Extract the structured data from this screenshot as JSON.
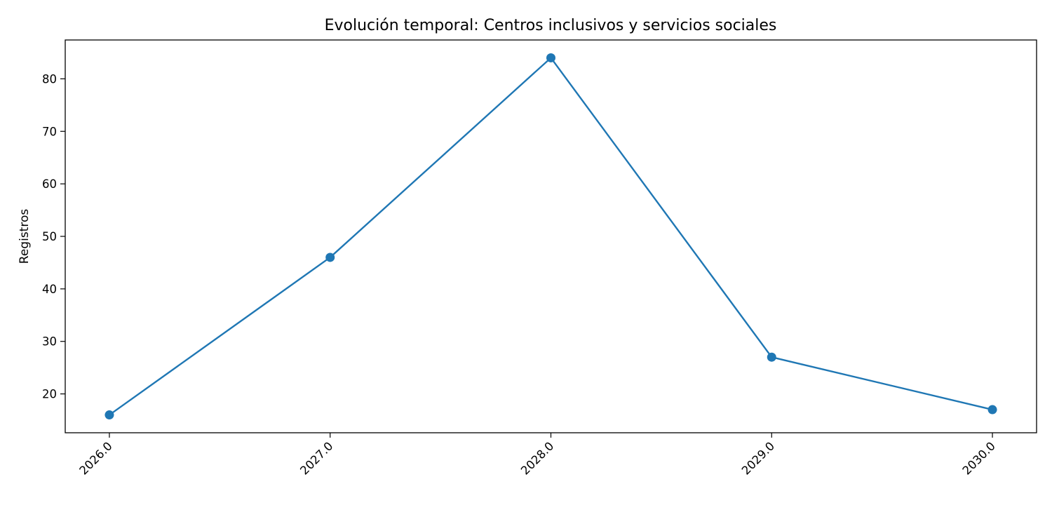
{
  "chart_data": {
    "type": "line",
    "title": "Evolución temporal: Centros inclusivos y servicios sociales",
    "xlabel": "",
    "ylabel": "Registros",
    "x": [
      2026,
      2027,
      2028,
      2029,
      2030
    ],
    "x_tick_labels": [
      "2026.0",
      "2027.0",
      "2028.0",
      "2029.0",
      "2030.0"
    ],
    "y_ticks": [
      20,
      30,
      40,
      50,
      60,
      70,
      80
    ],
    "y_tick_labels": [
      "20",
      "30",
      "40",
      "50",
      "60",
      "70",
      "80"
    ],
    "xlim": [
      2025.8,
      2030.2
    ],
    "ylim": [
      12.6,
      87.4
    ],
    "grid": false,
    "series": [
      {
        "values": [
          16,
          46,
          84,
          27,
          17
        ],
        "color": "#1f77b4",
        "marker": "circle"
      }
    ]
  }
}
